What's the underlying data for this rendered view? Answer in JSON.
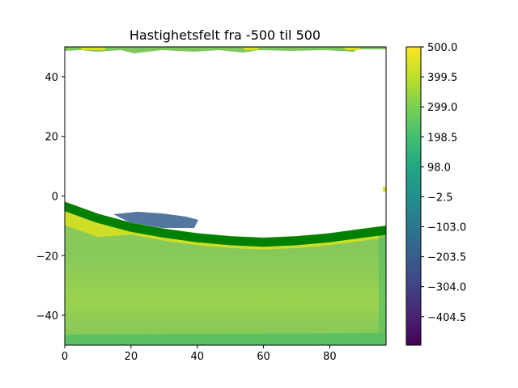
{
  "chart_data": {
    "type": "heatmap",
    "title": "Hastighetsfelt fra -500 til 500",
    "xlabel": "",
    "ylabel": "",
    "xlim": [
      0,
      97
    ],
    "ylim": [
      -50,
      50
    ],
    "x_ticks": [
      "0",
      "20",
      "40",
      "60",
      "80"
    ],
    "y_ticks": [
      "40",
      "20",
      "0",
      "−20",
      "−40"
    ],
    "colorbar": {
      "range": [
        -500,
        500
      ],
      "colormap": "viridis",
      "ticks": [
        "500.0",
        "399.5",
        "299.0",
        "198.5",
        "98.0",
        "−2.5",
        "−103.0",
        "−203.5",
        "−304.0",
        "−404.5"
      ]
    },
    "regions": [
      {
        "name": "lower-fluid-region",
        "approx_value_range": [
          150,
          320
        ]
      },
      {
        "name": "masked-region",
        "value": null
      }
    ],
    "boundary_curve": {
      "color": "#008000",
      "points": [
        [
          0,
          -3.5
        ],
        [
          10,
          -7.5
        ],
        [
          20,
          -10.5
        ],
        [
          30,
          -12.5
        ],
        [
          40,
          -14
        ],
        [
          50,
          -15
        ],
        [
          60,
          -15.5
        ],
        [
          70,
          -15
        ],
        [
          80,
          -14
        ],
        [
          90,
          -12.5
        ],
        [
          97,
          -11.5
        ]
      ]
    }
  }
}
